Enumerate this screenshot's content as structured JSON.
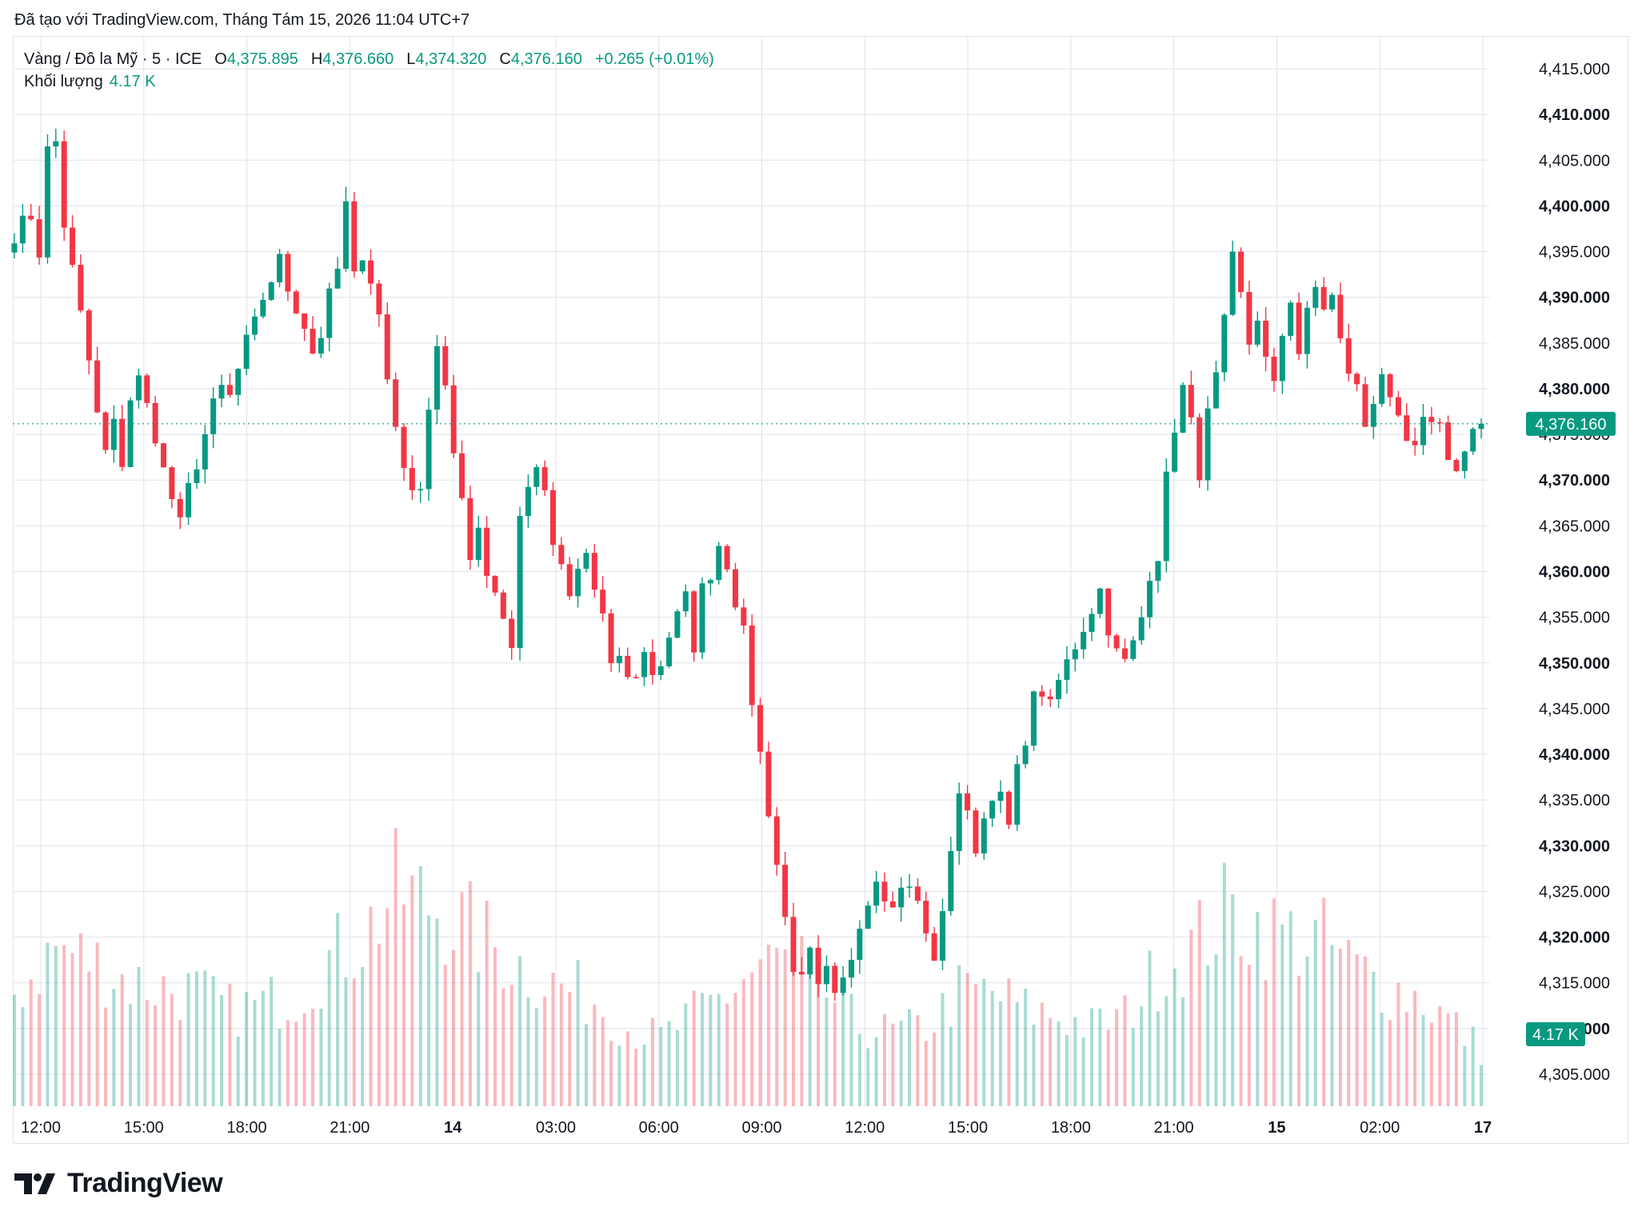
{
  "caption": "Đã tạo với TradingView.com, Tháng Tám 15, 2026 11:04 UTC+7",
  "legend": {
    "symbol": "Vàng / Đô la Mỹ · 5 · ICE",
    "open_label": "O",
    "open": "4,375.895",
    "high_label": "H",
    "high": "4,376.660",
    "low_label": "L",
    "low": "4,374.320",
    "close_label": "C",
    "close": "4,376.160",
    "change": "+0.265 (+0.01%)",
    "volume_label": "Khối lượng",
    "volume": "4.17 K"
  },
  "brand": {
    "name": "TradingView",
    "logo_icon": "tradingview-logo-icon"
  },
  "colors": {
    "up": "#089981",
    "down": "#f23645",
    "grid": "#e0e3eb",
    "text": "#131722"
  },
  "chart_data": {
    "type": "candlestick",
    "interval": "5",
    "ylim": [
      4301.5,
      4418.5
    ],
    "y_ticks": [
      "4,415.000",
      "4,410.000",
      "4,405.000",
      "4,400.000",
      "4,395.000",
      "4,390.000",
      "4,385.000",
      "4,380.000",
      "4,375.000",
      "4,370.000",
      "4,365.000",
      "4,360.000",
      "4,355.000",
      "4,350.000",
      "4,345.000",
      "4,340.000",
      "4,335.000",
      "4,330.000",
      "4,325.000",
      "4,320.000",
      "4,315.000",
      "4,310.000",
      "4,305.000"
    ],
    "y_tick_values": [
      4415,
      4410,
      4405,
      4400,
      4395,
      4390,
      4385,
      4380,
      4375,
      4370,
      4365,
      4360,
      4355,
      4350,
      4345,
      4340,
      4335,
      4330,
      4325,
      4320,
      4315,
      4310,
      4305
    ],
    "x_ticks": [
      "12:00",
      "15:00",
      "18:00",
      "21:00",
      "14",
      "03:00",
      "06:00",
      "09:00",
      "12:00",
      "15:00",
      "18:00",
      "21:00",
      "15",
      "02:00",
      "17"
    ],
    "x_tick_bold": [
      false,
      false,
      false,
      false,
      true,
      false,
      false,
      false,
      false,
      false,
      false,
      false,
      true,
      false,
      true
    ],
    "last_price": 4376.16,
    "last_price_label": "4,376.160",
    "last_volume_label": "4.17 K",
    "close_path": [
      [
        0,
        4397
      ],
      [
        2,
        4399
      ],
      [
        3,
        4395
      ],
      [
        4,
        4406
      ],
      [
        5,
        4407
      ],
      [
        6,
        4398
      ],
      [
        7,
        4393
      ],
      [
        8,
        4388
      ],
      [
        9,
        4383
      ],
      [
        10,
        4377
      ],
      [
        11,
        4373
      ],
      [
        12,
        4376
      ],
      [
        13,
        4372
      ],
      [
        14,
        4379
      ],
      [
        15,
        4381
      ],
      [
        16,
        4378
      ],
      [
        17,
        4375
      ],
      [
        18,
        4371
      ],
      [
        19,
        4368
      ],
      [
        20,
        4365
      ],
      [
        21,
        4369
      ],
      [
        22,
        4372
      ],
      [
        23,
        4375
      ],
      [
        24,
        4378
      ],
      [
        25,
        4380
      ],
      [
        26,
        4379
      ],
      [
        27,
        4382
      ],
      [
        28,
        4385
      ],
      [
        29,
        4387
      ],
      [
        30,
        4390
      ],
      [
        31,
        4392
      ],
      [
        32,
        4394
      ],
      [
        33,
        4391
      ],
      [
        34,
        4389
      ],
      [
        35,
        4387
      ],
      [
        36,
        4384
      ],
      [
        37,
        4386
      ],
      [
        38,
        4390
      ],
      [
        39,
        4393
      ],
      [
        40,
        4400
      ],
      [
        41,
        4392
      ],
      [
        42,
        4395
      ],
      [
        43,
        4392
      ],
      [
        44,
        4388
      ],
      [
        45,
        4381
      ],
      [
        46,
        4376
      ],
      [
        47,
        4372
      ],
      [
        48,
        4368
      ],
      [
        49,
        4370
      ],
      [
        50,
        4378
      ],
      [
        51,
        4385
      ],
      [
        52,
        4380
      ],
      [
        53,
        4372
      ],
      [
        54,
        4368
      ],
      [
        55,
        4362
      ],
      [
        56,
        4365
      ],
      [
        57,
        4360
      ],
      [
        58,
        4358
      ],
      [
        59,
        4355
      ],
      [
        60,
        4352
      ],
      [
        61,
        4366
      ],
      [
        62,
        4369
      ],
      [
        63,
        4372
      ],
      [
        64,
        4368
      ],
      [
        65,
        4363
      ],
      [
        66,
        4360
      ],
      [
        67,
        4357
      ],
      [
        68,
        4360
      ],
      [
        69,
        4362
      ],
      [
        70,
        4358
      ],
      [
        71,
        4355
      ],
      [
        72,
        4349
      ],
      [
        73,
        4351
      ],
      [
        74,
        4348
      ],
      [
        75,
        4349
      ],
      [
        76,
        4351
      ],
      [
        77,
        4349
      ],
      [
        78,
        4350
      ],
      [
        79,
        4353
      ],
      [
        80,
        4355
      ],
      [
        81,
        4357
      ],
      [
        82,
        4352
      ],
      [
        83,
        4358
      ],
      [
        84,
        4360
      ],
      [
        85,
        4363
      ],
      [
        86,
        4361
      ],
      [
        87,
        4357
      ],
      [
        88,
        4353
      ],
      [
        89,
        4346
      ],
      [
        90,
        4340
      ],
      [
        91,
        4334
      ],
      [
        92,
        4328
      ],
      [
        93,
        4322
      ],
      [
        94,
        4317
      ],
      [
        95,
        4315
      ],
      [
        96,
        4318
      ],
      [
        97,
        4314
      ],
      [
        98,
        4316
      ],
      [
        99,
        4313
      ],
      [
        100,
        4315
      ],
      [
        101,
        4318
      ],
      [
        102,
        4322
      ],
      [
        103,
        4324
      ],
      [
        104,
        4327
      ],
      [
        105,
        4325
      ],
      [
        106,
        4323
      ],
      [
        107,
        4326
      ],
      [
        108,
        4325
      ],
      [
        109,
        4324
      ],
      [
        110,
        4320
      ],
      [
        111,
        4318
      ],
      [
        112,
        4322
      ],
      [
        113,
        4330
      ],
      [
        114,
        4336
      ],
      [
        115,
        4333
      ],
      [
        116,
        4330
      ],
      [
        117,
        4333
      ],
      [
        118,
        4336
      ],
      [
        119,
        4335
      ],
      [
        120,
        4332
      ],
      [
        121,
        4338
      ],
      [
        122,
        4342
      ],
      [
        123,
        4346
      ],
      [
        124,
        4347
      ],
      [
        125,
        4345
      ],
      [
        126,
        4348
      ],
      [
        127,
        4350
      ],
      [
        128,
        4352
      ],
      [
        129,
        4354
      ],
      [
        130,
        4356
      ],
      [
        131,
        4358
      ],
      [
        132,
        4354
      ],
      [
        133,
        4351
      ],
      [
        134,
        4350
      ],
      [
        135,
        4352
      ],
      [
        136,
        4355
      ],
      [
        137,
        4360
      ],
      [
        138,
        4362
      ],
      [
        139,
        4370
      ],
      [
        140,
        4376
      ],
      [
        141,
        4380
      ],
      [
        142,
        4376
      ],
      [
        143,
        4371
      ],
      [
        144,
        4377
      ],
      [
        145,
        4381
      ],
      [
        146,
        4387
      ],
      [
        147,
        4394
      ],
      [
        148,
        4390
      ],
      [
        149,
        4385
      ],
      [
        150,
        4388
      ],
      [
        151,
        4383
      ],
      [
        152,
        4380
      ],
      [
        153,
        4386
      ],
      [
        154,
        4390
      ],
      [
        155,
        4384
      ],
      [
        156,
        4388
      ],
      [
        157,
        4391
      ],
      [
        158,
        4389
      ],
      [
        159,
        4390
      ],
      [
        160,
        4385
      ],
      [
        161,
        4382
      ],
      [
        162,
        4380
      ],
      [
        163,
        4376
      ],
      [
        164,
        4379
      ],
      [
        165,
        4382
      ],
      [
        166,
        4378
      ],
      [
        167,
        4376
      ],
      [
        168,
        4374
      ],
      [
        169,
        4373
      ],
      [
        170,
        4376
      ],
      [
        171,
        4377
      ],
      [
        172,
        4376
      ],
      [
        173,
        4373
      ],
      [
        174,
        4371
      ],
      [
        175,
        4373
      ],
      [
        176,
        4375
      ],
      [
        177,
        4376.16
      ]
    ],
    "volume_profile": [
      [
        0,
        1.0
      ],
      [
        5,
        1.4
      ],
      [
        9,
        1.3
      ],
      [
        14,
        1.1
      ],
      [
        18,
        1.05
      ],
      [
        22,
        1.0
      ],
      [
        26,
        0.85
      ],
      [
        30,
        0.9
      ],
      [
        34,
        1.0
      ],
      [
        38,
        1.3
      ],
      [
        42,
        1.5
      ],
      [
        46,
        1.9
      ],
      [
        50,
        1.8
      ],
      [
        54,
        1.6
      ],
      [
        58,
        1.4
      ],
      [
        62,
        1.2
      ],
      [
        66,
        1.05
      ],
      [
        70,
        0.95
      ],
      [
        74,
        0.7
      ],
      [
        78,
        0.6
      ],
      [
        82,
        0.8
      ],
      [
        86,
        1.0
      ],
      [
        90,
        1.25
      ],
      [
        94,
        1.3
      ],
      [
        98,
        1.0
      ],
      [
        102,
        0.7
      ],
      [
        106,
        0.65
      ],
      [
        110,
        0.7
      ],
      [
        114,
        1.0
      ],
      [
        118,
        1.0
      ],
      [
        122,
        0.85
      ],
      [
        126,
        0.8
      ],
      [
        130,
        0.7
      ],
      [
        134,
        0.8
      ],
      [
        138,
        1.2
      ],
      [
        142,
        1.4
      ],
      [
        146,
        1.7
      ],
      [
        150,
        1.6
      ],
      [
        154,
        1.5
      ],
      [
        158,
        1.45
      ],
      [
        162,
        1.2
      ],
      [
        166,
        1.05
      ],
      [
        170,
        0.95
      ],
      [
        174,
        0.7
      ],
      [
        177,
        0.5
      ]
    ],
    "volume_max": 2.5,
    "bar_count": 178
  }
}
